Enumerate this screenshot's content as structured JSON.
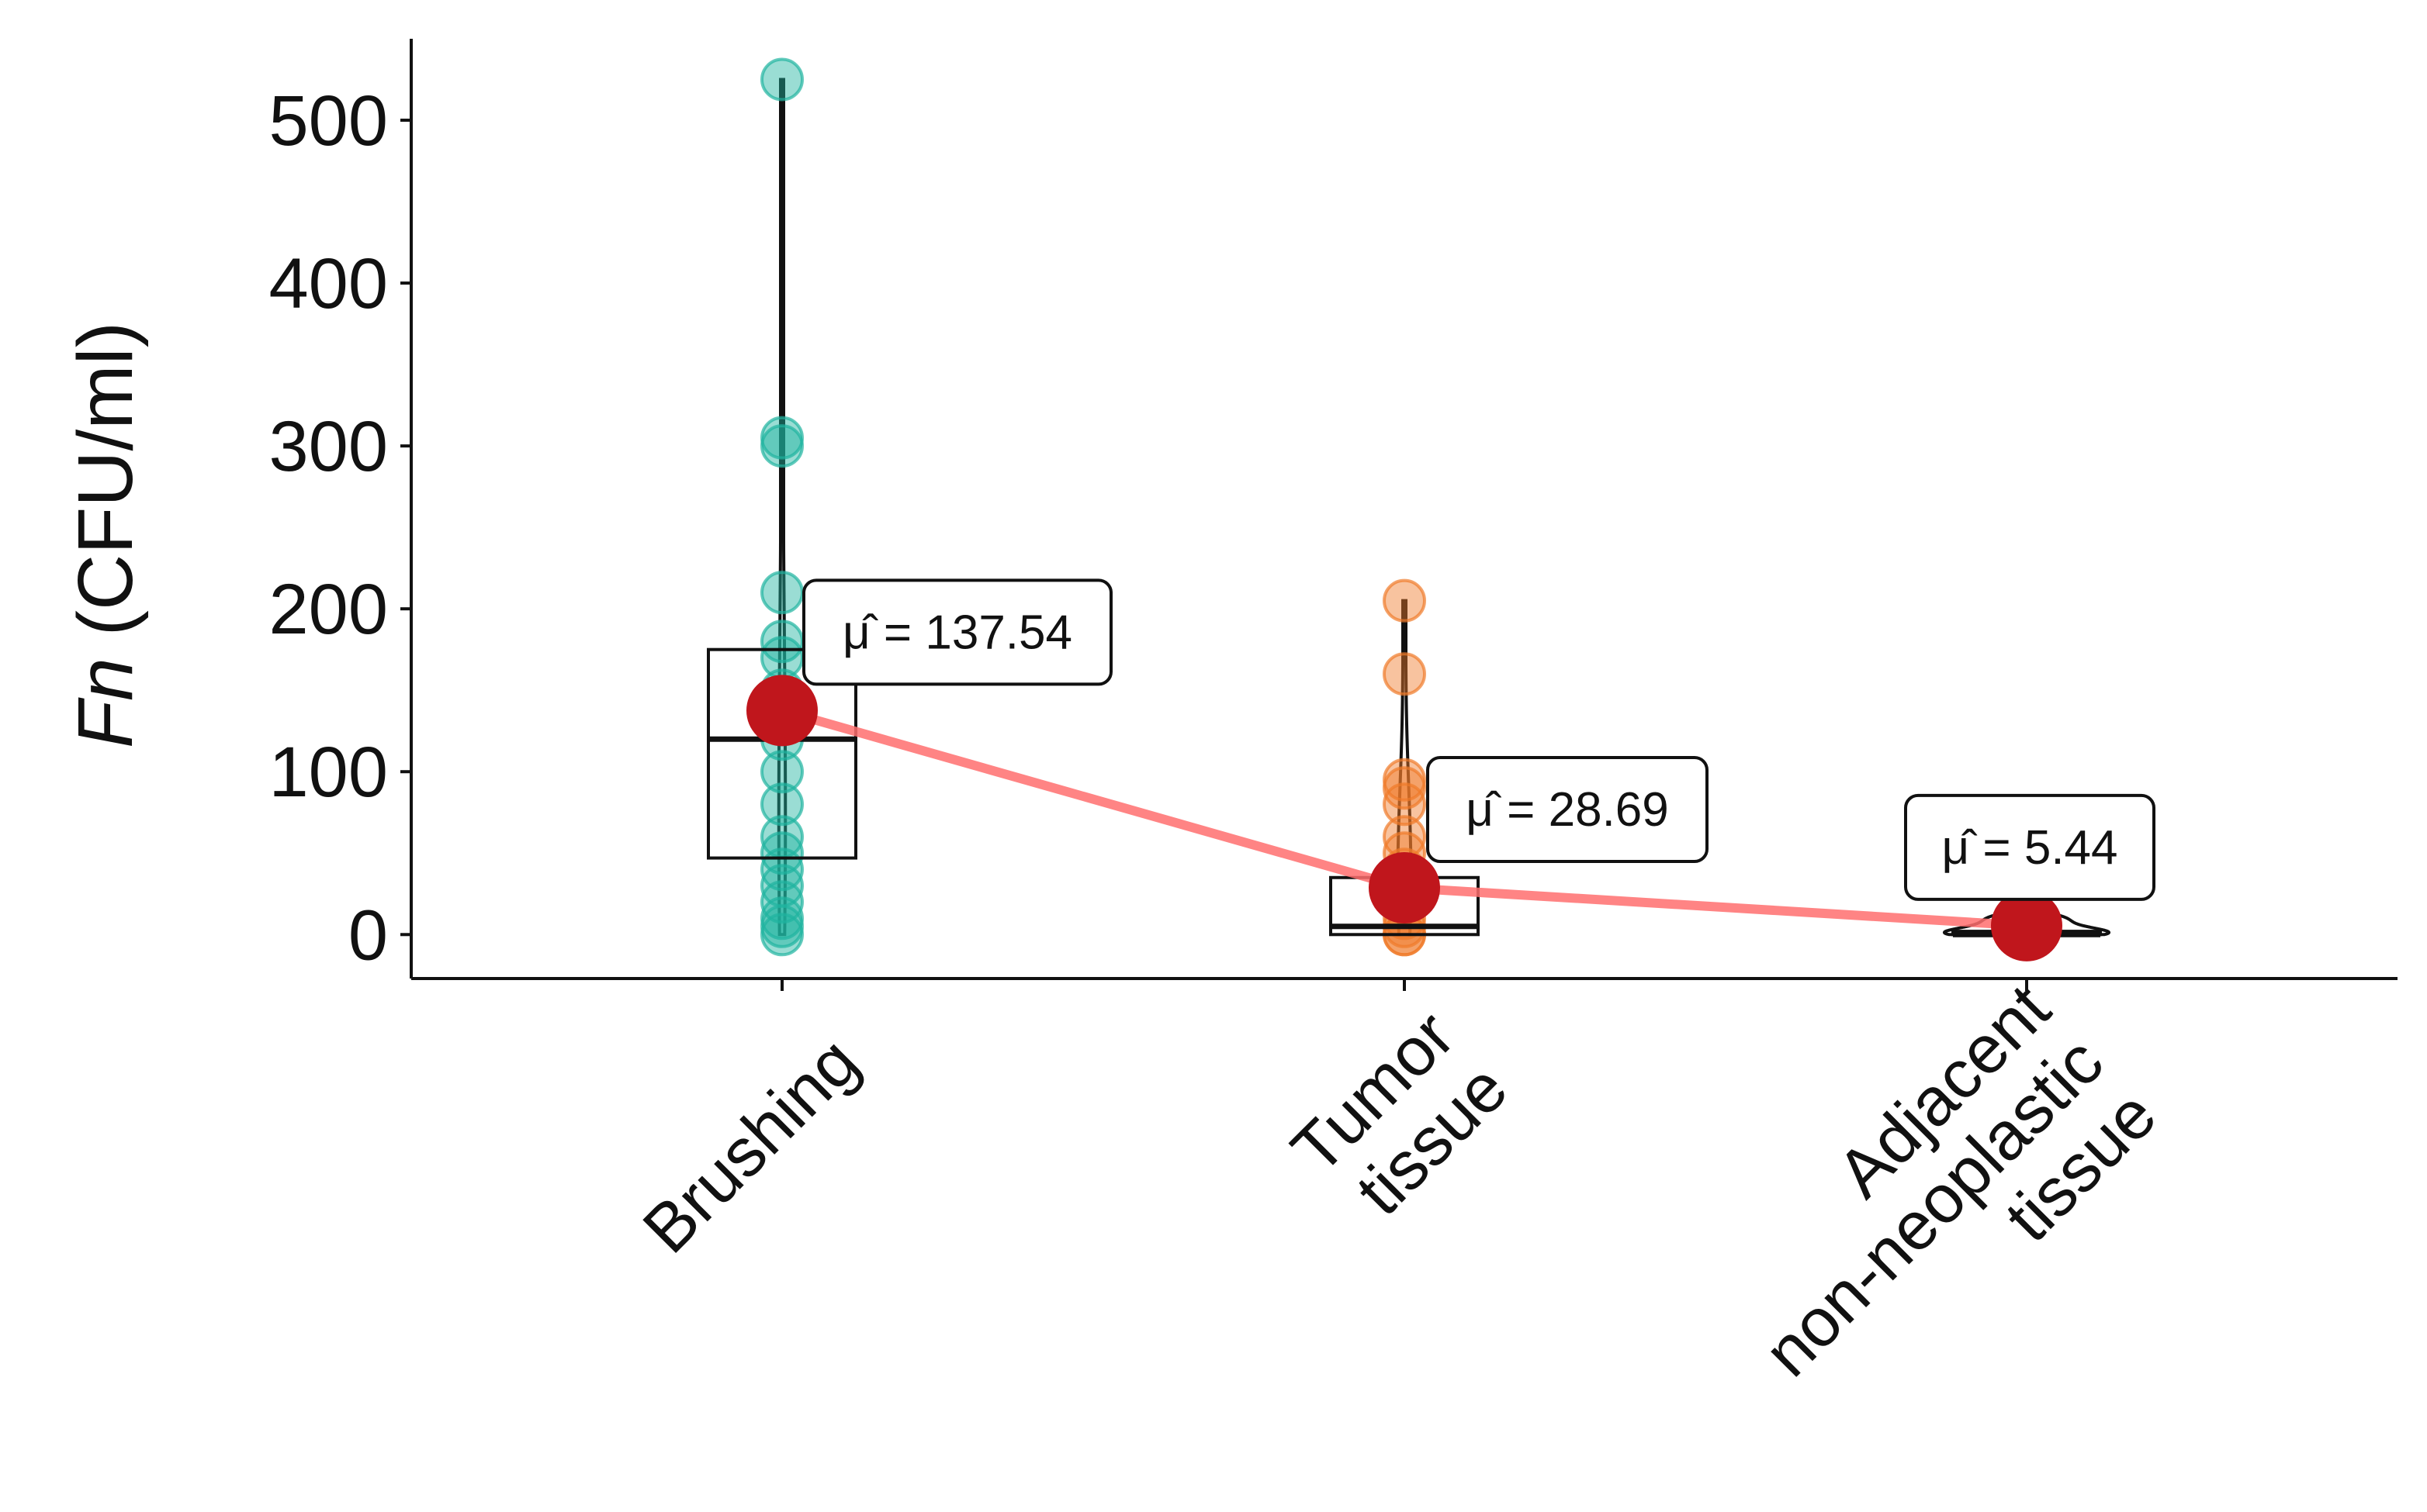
{
  "chart_data": {
    "type": "box",
    "y_label": {
      "italic": "Fn",
      "text": "(CFU/ml)"
    },
    "categories": [
      [
        "Brushing"
      ],
      [
        "Tumor",
        "tissue"
      ],
      [
        "Adjacent",
        "non-neoplastic",
        "tissue"
      ]
    ],
    "groups": [
      {
        "color": "#1fb3a0",
        "points": [
          525,
          305,
          300,
          210,
          180,
          170,
          150,
          130,
          120,
          100,
          80,
          60,
          50,
          40,
          30,
          20,
          10,
          5,
          0
        ],
        "q1": 47,
        "median": 120,
        "q3": 175
      },
      {
        "color": "#f07a2a",
        "points": [
          205,
          160,
          95,
          90,
          80,
          60,
          50,
          40,
          30,
          20,
          10,
          5,
          0,
          0
        ],
        "q1": 0,
        "median": 5,
        "q3": 35
      },
      {
        "color": "#d63a2a",
        "points": [
          0,
          0,
          0,
          0,
          2,
          3,
          5,
          8,
          10,
          12
        ],
        "q1": 0,
        "median": 0,
        "q3": 2
      }
    ],
    "means": [
      137.54,
      28.69,
      5.44
    ],
    "mean_labels": [
      "μ̂ = 137.54",
      "μ̂ = 28.69",
      "μ̂ = 5.44"
    ],
    "mean_color": "#c0161c",
    "mean_line_color": "#ff6f6f",
    "ylim": [
      -27,
      550
    ],
    "yticks": [
      0,
      100,
      200,
      300,
      400,
      500
    ]
  }
}
